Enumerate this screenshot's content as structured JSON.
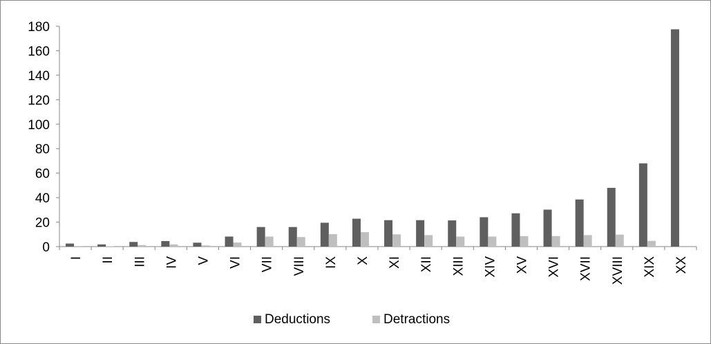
{
  "chart_data": {
    "type": "bar",
    "categories": [
      "I",
      "II",
      "III",
      "IV",
      "V",
      "VI",
      "VII",
      "VIII",
      "IX",
      "X",
      "XI",
      "XII",
      "XIII",
      "XIV",
      "XV",
      "XVI",
      "XVII",
      "XVIII",
      "XIX",
      "XX"
    ],
    "series": [
      {
        "name": "Deductions",
        "color": "#5f5f5f",
        "values": [
          2.5,
          1.8,
          3.8,
          4.5,
          3.2,
          8.2,
          16,
          16,
          19.5,
          22.8,
          21.6,
          21.6,
          21.4,
          24,
          27.2,
          30.2,
          38.5,
          48,
          68,
          177.5
        ]
      },
      {
        "name": "Detractions",
        "color": "#bfbfbf",
        "values": [
          0.4,
          0.3,
          1.3,
          1.8,
          1.0,
          3.3,
          8.2,
          7.8,
          10.2,
          11.8,
          10,
          9.4,
          8.2,
          8.2,
          8.6,
          8.6,
          9.4,
          9.8,
          4.7,
          0
        ]
      }
    ],
    "ylim": [
      0,
      180
    ],
    "yticks": [
      0,
      20,
      40,
      60,
      80,
      100,
      120,
      140,
      160,
      180
    ],
    "grid": false,
    "legend_position": "bottom"
  }
}
